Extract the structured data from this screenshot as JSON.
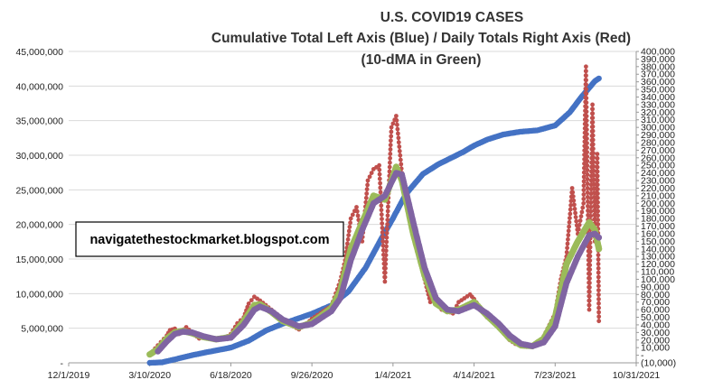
{
  "chart_data": {
    "type": "line",
    "title": "U.S. COVID19 CASES",
    "subtitle_1": "Cumulative Total Left Axis (Blue) / Daily Totals Right Axis (Red)",
    "subtitle_2": "(10-dMA in Green)",
    "annotation": "navigatethestockmarket.blogspot.com",
    "x_axis": {
      "type": "date",
      "min": "2019-12-01",
      "max": "2021-10-31",
      "ticks": [
        "12/1/2019",
        "3/10/2020",
        "6/18/2020",
        "9/26/2020",
        "1/4/2021",
        "4/14/2021",
        "7/23/2021",
        "10/31/2021"
      ]
    },
    "y_left": {
      "min": 0,
      "max": 45000000,
      "ticks": [
        "-",
        "5,000,000",
        "10,000,000",
        "15,000,000",
        "20,000,000",
        "25,000,000",
        "30,000,000",
        "35,000,000",
        "40,000,000",
        "45,000,000"
      ],
      "grid": true
    },
    "y_right": {
      "min": -10000,
      "max": 400000,
      "ticks": [
        "(10,000)",
        "-",
        "10,000",
        "20,000",
        "30,000",
        "40,000",
        "50,000",
        "60,000",
        "70,000",
        "80,000",
        "90,000",
        "100,000",
        "110,000",
        "120,000",
        "130,000",
        "140,000",
        "150,000",
        "160,000",
        "170,000",
        "180,000",
        "190,000",
        "200,000",
        "210,000",
        "220,000",
        "230,000",
        "240,000",
        "250,000",
        "260,000",
        "270,000",
        "280,000",
        "290,000",
        "300,000",
        "310,000",
        "320,000",
        "330,000",
        "340,000",
        "350,000",
        "360,000",
        "370,000",
        "380,000",
        "390,000",
        "400,000"
      ]
    },
    "colors": {
      "cumulative": "#4472c4",
      "daily": "#c0504d",
      "ma10": "#9bbb59",
      "ma_purple": "#8064a2"
    },
    "series": [
      {
        "axis": "left",
        "style": "markers",
        "points": [
          [
            "2020-03-10",
            1000
          ],
          [
            "2020-03-25",
            70000
          ],
          [
            "2020-04-10",
            500000
          ],
          [
            "2020-05-01",
            1100000
          ],
          [
            "2020-05-20",
            1550000
          ],
          [
            "2020-06-18",
            2200000
          ],
          [
            "2020-07-10",
            3200000
          ],
          [
            "2020-08-01",
            4700000
          ],
          [
            "2020-08-20",
            5600000
          ],
          [
            "2020-09-26",
            7100000
          ],
          [
            "2020-10-20",
            8300000
          ],
          [
            "2020-11-10",
            10300000
          ],
          [
            "2020-12-01",
            13700000
          ],
          [
            "2020-12-20",
            17800000
          ],
          [
            "2021-01-04",
            20900000
          ],
          [
            "2021-01-20",
            24400000
          ],
          [
            "2021-02-10",
            27300000
          ],
          [
            "2021-03-01",
            28700000
          ],
          [
            "2021-04-01",
            30500000
          ],
          [
            "2021-04-14",
            31400000
          ],
          [
            "2021-05-01",
            32300000
          ],
          [
            "2021-05-20",
            33000000
          ],
          [
            "2021-06-10",
            33400000
          ],
          [
            "2021-07-01",
            33600000
          ],
          [
            "2021-07-23",
            34300000
          ],
          [
            "2021-08-10",
            36200000
          ],
          [
            "2021-08-25",
            38500000
          ],
          [
            "2021-09-10",
            40700000
          ],
          [
            "2021-09-15",
            41100000
          ]
        ]
      },
      {
        "axis": "right",
        "style": "line-markers",
        "points": [
          [
            "2020-03-10",
            1000
          ],
          [
            "2020-03-20",
            13000
          ],
          [
            "2020-03-31",
            26000
          ],
          [
            "2020-04-04",
            33000
          ],
          [
            "2020-04-10",
            35000
          ],
          [
            "2020-04-15",
            28000
          ],
          [
            "2020-04-24",
            37000
          ],
          [
            "2020-05-01",
            30000
          ],
          [
            "2020-05-10",
            22000
          ],
          [
            "2020-05-20",
            24000
          ],
          [
            "2020-05-31",
            20000
          ],
          [
            "2020-06-10",
            22000
          ],
          [
            "2020-06-18",
            28000
          ],
          [
            "2020-06-26",
            42000
          ],
          [
            "2020-07-04",
            50000
          ],
          [
            "2020-07-10",
            68000
          ],
          [
            "2020-07-17",
            77000
          ],
          [
            "2020-07-24",
            72000
          ],
          [
            "2020-07-31",
            66000
          ],
          [
            "2020-08-07",
            60000
          ],
          [
            "2020-08-14",
            54000
          ],
          [
            "2020-08-21",
            46000
          ],
          [
            "2020-08-31",
            40000
          ],
          [
            "2020-09-10",
            34000
          ],
          [
            "2020-09-20",
            42000
          ],
          [
            "2020-09-26",
            48000
          ],
          [
            "2020-10-10",
            58000
          ],
          [
            "2020-10-20",
            65000
          ],
          [
            "2020-10-31",
            98000
          ],
          [
            "2020-11-06",
            125000
          ],
          [
            "2020-11-13",
            180000
          ],
          [
            "2020-11-20",
            195000
          ],
          [
            "2020-11-27",
            150000
          ],
          [
            "2020-12-04",
            230000
          ],
          [
            "2020-12-11",
            245000
          ],
          [
            "2020-12-18",
            250000
          ],
          [
            "2020-12-25",
            97000
          ],
          [
            "2021-01-02",
            300000
          ],
          [
            "2021-01-08",
            315000
          ],
          [
            "2021-01-15",
            240000
          ],
          [
            "2021-01-22",
            190000
          ],
          [
            "2021-01-29",
            160000
          ],
          [
            "2021-02-05",
            130000
          ],
          [
            "2021-02-12",
            100000
          ],
          [
            "2021-02-19",
            70000
          ],
          [
            "2021-02-26",
            78000
          ],
          [
            "2021-03-05",
            60000
          ],
          [
            "2021-03-12",
            58000
          ],
          [
            "2021-03-19",
            55000
          ],
          [
            "2021-03-26",
            70000
          ],
          [
            "2021-04-02",
            75000
          ],
          [
            "2021-04-09",
            80000
          ],
          [
            "2021-04-14",
            74000
          ],
          [
            "2021-04-23",
            60000
          ],
          [
            "2021-04-30",
            50000
          ],
          [
            "2021-05-07",
            45000
          ],
          [
            "2021-05-14",
            38000
          ],
          [
            "2021-05-21",
            28000
          ],
          [
            "2021-05-28",
            20000
          ],
          [
            "2021-06-04",
            15000
          ],
          [
            "2021-06-11",
            13000
          ],
          [
            "2021-06-18",
            12000
          ],
          [
            "2021-06-25",
            11000
          ],
          [
            "2021-07-02",
            15000
          ],
          [
            "2021-07-09",
            25000
          ],
          [
            "2021-07-16",
            40000
          ],
          [
            "2021-07-23",
            55000
          ],
          [
            "2021-07-30",
            100000
          ],
          [
            "2021-08-06",
            130000
          ],
          [
            "2021-08-13",
            220000
          ],
          [
            "2021-08-20",
            160000
          ],
          [
            "2021-08-27",
            200000
          ],
          [
            "2021-08-30",
            380000
          ],
          [
            "2021-09-03",
            60000
          ],
          [
            "2021-09-07",
            330000
          ],
          [
            "2021-09-10",
            150000
          ],
          [
            "2021-09-13",
            265000
          ],
          [
            "2021-09-15",
            45000
          ]
        ]
      },
      {
        "axis": "right",
        "style": "markers",
        "points": [
          [
            "2020-03-10",
            1000
          ],
          [
            "2020-03-20",
            8000
          ],
          [
            "2020-03-31",
            22000
          ],
          [
            "2020-04-10",
            30000
          ],
          [
            "2020-04-20",
            32000
          ],
          [
            "2020-05-01",
            29000
          ],
          [
            "2020-05-15",
            24000
          ],
          [
            "2020-05-31",
            21000
          ],
          [
            "2020-06-18",
            24000
          ],
          [
            "2020-07-04",
            45000
          ],
          [
            "2020-07-17",
            66000
          ],
          [
            "2020-07-24",
            67000
          ],
          [
            "2020-08-07",
            57000
          ],
          [
            "2020-08-21",
            45000
          ],
          [
            "2020-09-10",
            37000
          ],
          [
            "2020-09-26",
            43000
          ],
          [
            "2020-10-20",
            62000
          ],
          [
            "2020-10-31",
            85000
          ],
          [
            "2020-11-13",
            140000
          ],
          [
            "2020-11-27",
            175000
          ],
          [
            "2020-12-11",
            210000
          ],
          [
            "2020-12-25",
            205000
          ],
          [
            "2021-01-08",
            248000
          ],
          [
            "2021-01-15",
            230000
          ],
          [
            "2021-01-29",
            160000
          ],
          [
            "2021-02-12",
            105000
          ],
          [
            "2021-02-26",
            68000
          ],
          [
            "2021-03-12",
            58000
          ],
          [
            "2021-03-26",
            60000
          ],
          [
            "2021-04-14",
            70000
          ],
          [
            "2021-04-30",
            52000
          ],
          [
            "2021-05-14",
            38000
          ],
          [
            "2021-05-28",
            22000
          ],
          [
            "2021-06-11",
            13000
          ],
          [
            "2021-06-25",
            12000
          ],
          [
            "2021-07-09",
            22000
          ],
          [
            "2021-07-23",
            50000
          ],
          [
            "2021-08-06",
            120000
          ],
          [
            "2021-08-20",
            150000
          ],
          [
            "2021-09-03",
            175000
          ],
          [
            "2021-09-10",
            165000
          ],
          [
            "2021-09-15",
            140000
          ]
        ]
      },
      {
        "axis": "right",
        "style": "markers",
        "points": [
          [
            "2020-03-20",
            5000
          ],
          [
            "2020-03-31",
            18000
          ],
          [
            "2020-04-10",
            28000
          ],
          [
            "2020-04-20",
            31000
          ],
          [
            "2020-05-01",
            30000
          ],
          [
            "2020-05-15",
            25000
          ],
          [
            "2020-05-31",
            21000
          ],
          [
            "2020-06-18",
            23000
          ],
          [
            "2020-07-04",
            40000
          ],
          [
            "2020-07-17",
            60000
          ],
          [
            "2020-07-24",
            64000
          ],
          [
            "2020-08-07",
            58000
          ],
          [
            "2020-08-21",
            47000
          ],
          [
            "2020-09-10",
            38000
          ],
          [
            "2020-09-26",
            41000
          ],
          [
            "2020-10-20",
            58000
          ],
          [
            "2020-10-31",
            75000
          ],
          [
            "2020-11-13",
            125000
          ],
          [
            "2020-11-27",
            165000
          ],
          [
            "2020-12-11",
            200000
          ],
          [
            "2020-12-25",
            210000
          ],
          [
            "2021-01-08",
            240000
          ],
          [
            "2021-01-15",
            238000
          ],
          [
            "2021-01-29",
            175000
          ],
          [
            "2021-02-12",
            115000
          ],
          [
            "2021-02-26",
            75000
          ],
          [
            "2021-03-12",
            60000
          ],
          [
            "2021-03-26",
            58000
          ],
          [
            "2021-04-14",
            66000
          ],
          [
            "2021-04-30",
            55000
          ],
          [
            "2021-05-14",
            42000
          ],
          [
            "2021-05-28",
            26000
          ],
          [
            "2021-06-11",
            15000
          ],
          [
            "2021-06-25",
            12000
          ],
          [
            "2021-07-09",
            17000
          ],
          [
            "2021-07-23",
            38000
          ],
          [
            "2021-08-06",
            95000
          ],
          [
            "2021-08-20",
            130000
          ],
          [
            "2021-09-03",
            158000
          ],
          [
            "2021-09-10",
            160000
          ],
          [
            "2021-09-15",
            155000
          ]
        ]
      }
    ]
  }
}
